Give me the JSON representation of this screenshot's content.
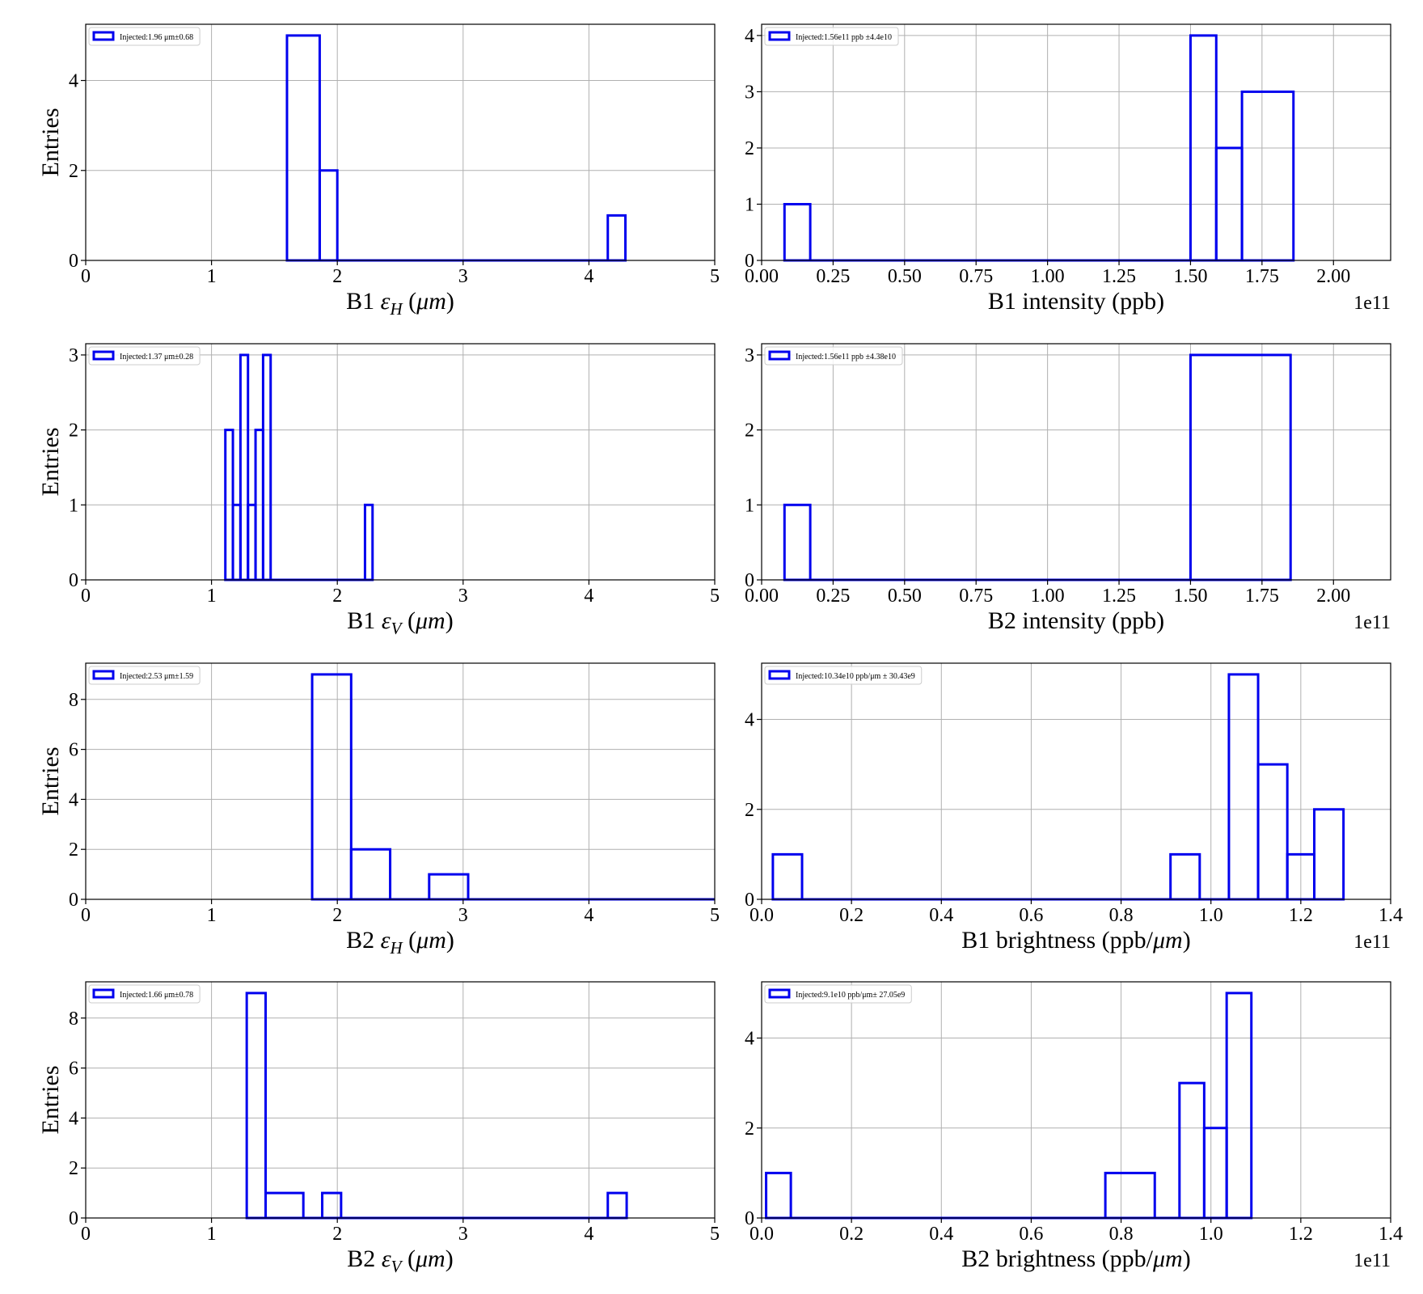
{
  "chart_data": [
    {
      "type": "histogram",
      "xlabel": "B1 εH (μm)",
      "xlabel_parts": {
        "prefix": "B1 ",
        "symbol": "ε",
        "sub": "H",
        "suffix": " (",
        "unit": "μm",
        "close": ")"
      },
      "ylabel": "Entries",
      "xlim": [
        0,
        5
      ],
      "ylim": [
        0,
        5.25
      ],
      "xticks": [
        0,
        1,
        2,
        3,
        4,
        5
      ],
      "xtick_labels": [
        "0",
        "1",
        "2",
        "3",
        "4",
        "5"
      ],
      "yticks": [
        0,
        2,
        4
      ],
      "ytick_labels": [
        "0",
        "2",
        "4"
      ],
      "offset_text": "",
      "grid": true,
      "legend": {
        "position": "upper left",
        "label": "Injected:1.96 μm±0.68"
      },
      "color": "#0000ee",
      "bins": [
        {
          "x0": 1.6,
          "x1": 1.86,
          "count": 5
        },
        {
          "x0": 1.86,
          "x1": 2.0,
          "count": 2
        },
        {
          "x0": 2.0,
          "x1": 4.15,
          "count": 0
        },
        {
          "x0": 4.15,
          "x1": 4.29,
          "count": 1
        }
      ]
    },
    {
      "type": "histogram",
      "xlabel": "B1 intensity (ppb)",
      "ylabel": "",
      "xlim": [
        0,
        2.2
      ],
      "ylim": [
        0,
        4.2
      ],
      "xticks": [
        0,
        0.25,
        0.5,
        0.75,
        1.0,
        1.25,
        1.5,
        1.75,
        2.0
      ],
      "xtick_labels": [
        "0.00",
        "0.25",
        "0.50",
        "0.75",
        "1.00",
        "1.25",
        "1.50",
        "1.75",
        "2.00"
      ],
      "yticks": [
        0,
        1,
        2,
        3,
        4
      ],
      "ytick_labels": [
        "0",
        "1",
        "2",
        "3",
        "4"
      ],
      "offset_text": "1e11",
      "grid": true,
      "legend": {
        "position": "upper left",
        "label": "Injected:1.56e11 ppb ±4.4e10"
      },
      "color": "#0000ee",
      "bins": [
        {
          "x0": 0.08,
          "x1": 0.17,
          "count": 1
        },
        {
          "x0": 0.17,
          "x1": 1.5,
          "count": 0
        },
        {
          "x0": 1.5,
          "x1": 1.59,
          "count": 4
        },
        {
          "x0": 1.59,
          "x1": 1.68,
          "count": 2
        },
        {
          "x0": 1.68,
          "x1": 1.86,
          "count": 3
        }
      ]
    },
    {
      "type": "histogram",
      "xlabel": "B1 εV (μm)",
      "xlabel_parts": {
        "prefix": "B1 ",
        "symbol": "ε",
        "sub": "V",
        "suffix": " (",
        "unit": "μm",
        "close": ")"
      },
      "ylabel": "Entries",
      "xlim": [
        0,
        5
      ],
      "ylim": [
        0,
        3.15
      ],
      "xticks": [
        0,
        1,
        2,
        3,
        4,
        5
      ],
      "xtick_labels": [
        "0",
        "1",
        "2",
        "3",
        "4",
        "5"
      ],
      "yticks": [
        0,
        1,
        2,
        3
      ],
      "ytick_labels": [
        "0",
        "1",
        "2",
        "3"
      ],
      "offset_text": "",
      "grid": true,
      "legend": {
        "position": "upper left",
        "label": "Injected:1.37 μm±0.28"
      },
      "color": "#0000ee",
      "bins": [
        {
          "x0": 1.11,
          "x1": 1.17,
          "count": 2
        },
        {
          "x0": 1.17,
          "x1": 1.23,
          "count": 1
        },
        {
          "x0": 1.23,
          "x1": 1.29,
          "count": 3
        },
        {
          "x0": 1.29,
          "x1": 1.35,
          "count": 1
        },
        {
          "x0": 1.35,
          "x1": 1.41,
          "count": 2
        },
        {
          "x0": 1.41,
          "x1": 1.47,
          "count": 3
        },
        {
          "x0": 1.47,
          "x1": 2.22,
          "count": 0
        },
        {
          "x0": 2.22,
          "x1": 2.28,
          "count": 1
        }
      ]
    },
    {
      "type": "histogram",
      "xlabel": "B2 intensity (ppb)",
      "ylabel": "",
      "xlim": [
        0,
        2.2
      ],
      "ylim": [
        0,
        3.15
      ],
      "xticks": [
        0,
        0.25,
        0.5,
        0.75,
        1.0,
        1.25,
        1.5,
        1.75,
        2.0
      ],
      "xtick_labels": [
        "0.00",
        "0.25",
        "0.50",
        "0.75",
        "1.00",
        "1.25",
        "1.50",
        "1.75",
        "2.00"
      ],
      "yticks": [
        0,
        1,
        2,
        3
      ],
      "ytick_labels": [
        "0",
        "1",
        "2",
        "3"
      ],
      "offset_text": "1e11",
      "grid": true,
      "legend": {
        "position": "upper left",
        "label": "Injected:1.56e11 ppb ±4.38e10"
      },
      "color": "#0000ee",
      "bins": [
        {
          "x0": 0.08,
          "x1": 0.17,
          "count": 1
        },
        {
          "x0": 0.17,
          "x1": 1.5,
          "count": 0
        },
        {
          "x0": 1.5,
          "x1": 1.85,
          "count": 3
        }
      ]
    },
    {
      "type": "histogram",
      "xlabel": "B2 εH (μm)",
      "xlabel_parts": {
        "prefix": "B2 ",
        "symbol": "ε",
        "sub": "H",
        "suffix": " (",
        "unit": "μm",
        "close": ")"
      },
      "ylabel": "Entries",
      "xlim": [
        0,
        5
      ],
      "ylim": [
        0,
        9.45
      ],
      "xticks": [
        0,
        1,
        2,
        3,
        4,
        5
      ],
      "xtick_labels": [
        "0",
        "1",
        "2",
        "3",
        "4",
        "5"
      ],
      "yticks": [
        0,
        2,
        4,
        6,
        8
      ],
      "ytick_labels": [
        "0",
        "2",
        "4",
        "6",
        "8"
      ],
      "offset_text": "",
      "grid": true,
      "legend": {
        "position": "upper left",
        "label": "Injected:2.53 μm±1.59"
      },
      "color": "#0000ee",
      "bins": [
        {
          "x0": 1.8,
          "x1": 2.11,
          "count": 9
        },
        {
          "x0": 2.11,
          "x1": 2.42,
          "count": 2
        },
        {
          "x0": 2.42,
          "x1": 2.73,
          "count": 0
        },
        {
          "x0": 2.73,
          "x1": 3.04,
          "count": 1
        },
        {
          "x0": 3.04,
          "x1": 5.0,
          "count": 0
        }
      ]
    },
    {
      "type": "histogram",
      "xlabel": "B1 brightness (ppb/μm)",
      "xlabel_parts": {
        "prefix": "B1 brightness (ppb/",
        "unit": "μm",
        "close": ")"
      },
      "ylabel": "",
      "xlim": [
        0,
        1.4
      ],
      "ylim": [
        0,
        5.25
      ],
      "xticks": [
        0,
        0.2,
        0.4,
        0.6,
        0.8,
        1.0,
        1.2,
        1.4
      ],
      "xtick_labels": [
        "0.0",
        "0.2",
        "0.4",
        "0.6",
        "0.8",
        "1.0",
        "1.2",
        "1.4"
      ],
      "yticks": [
        0,
        2,
        4
      ],
      "ytick_labels": [
        "0",
        "2",
        "4"
      ],
      "offset_text": "1e11",
      "grid": true,
      "legend": {
        "position": "upper left",
        "label": "Injected:10.34e10 ppb/μm ± 30.43e9"
      },
      "color": "#0000ee",
      "bins": [
        {
          "x0": 0.025,
          "x1": 0.09,
          "count": 1
        },
        {
          "x0": 0.09,
          "x1": 0.91,
          "count": 0
        },
        {
          "x0": 0.91,
          "x1": 0.975,
          "count": 1
        },
        {
          "x0": 0.975,
          "x1": 1.04,
          "count": 0
        },
        {
          "x0": 1.04,
          "x1": 1.105,
          "count": 5
        },
        {
          "x0": 1.105,
          "x1": 1.17,
          "count": 3
        },
        {
          "x0": 1.17,
          "x1": 1.23,
          "count": 1
        },
        {
          "x0": 1.23,
          "x1": 1.295,
          "count": 2
        }
      ]
    },
    {
      "type": "histogram",
      "xlabel": "B2 εV (μm)",
      "xlabel_parts": {
        "prefix": "B2 ",
        "symbol": "ε",
        "sub": "V",
        "suffix": " (",
        "unit": "μm",
        "close": ")"
      },
      "ylabel": "Entries",
      "xlim": [
        0,
        5
      ],
      "ylim": [
        0,
        9.45
      ],
      "xticks": [
        0,
        1,
        2,
        3,
        4,
        5
      ],
      "xtick_labels": [
        "0",
        "1",
        "2",
        "3",
        "4",
        "5"
      ],
      "yticks": [
        0,
        2,
        4,
        6,
        8
      ],
      "ytick_labels": [
        "0",
        "2",
        "4",
        "6",
        "8"
      ],
      "offset_text": "",
      "grid": true,
      "legend": {
        "position": "upper left",
        "label": "Injected:1.66 μm±0.78"
      },
      "color": "#0000ee",
      "bins": [
        {
          "x0": 1.28,
          "x1": 1.43,
          "count": 9
        },
        {
          "x0": 1.43,
          "x1": 1.73,
          "count": 1
        },
        {
          "x0": 1.73,
          "x1": 1.88,
          "count": 0
        },
        {
          "x0": 1.88,
          "x1": 2.03,
          "count": 1
        },
        {
          "x0": 2.03,
          "x1": 4.15,
          "count": 0
        },
        {
          "x0": 4.15,
          "x1": 4.3,
          "count": 1
        }
      ]
    },
    {
      "type": "histogram",
      "xlabel": "B2 brightness (ppb/μm)",
      "xlabel_parts": {
        "prefix": "B2 brightness (ppb/",
        "unit": "μm",
        "close": ")"
      },
      "ylabel": "",
      "xlim": [
        0,
        1.4
      ],
      "ylim": [
        0,
        5.25
      ],
      "xticks": [
        0,
        0.2,
        0.4,
        0.6,
        0.8,
        1.0,
        1.2,
        1.4
      ],
      "xtick_labels": [
        "0.0",
        "0.2",
        "0.4",
        "0.6",
        "0.8",
        "1.0",
        "1.2",
        "1.4"
      ],
      "yticks": [
        0,
        2,
        4
      ],
      "ytick_labels": [
        "0",
        "2",
        "4"
      ],
      "offset_text": "1e11",
      "grid": true,
      "legend": {
        "position": "upper left",
        "label": "Injected:9.1e10 ppb/μm± 27.05e9"
      },
      "color": "#0000ee",
      "bins": [
        {
          "x0": 0.01,
          "x1": 0.065,
          "count": 1
        },
        {
          "x0": 0.065,
          "x1": 0.765,
          "count": 0
        },
        {
          "x0": 0.765,
          "x1": 0.875,
          "count": 1
        },
        {
          "x0": 0.875,
          "x1": 0.93,
          "count": 0
        },
        {
          "x0": 0.93,
          "x1": 0.985,
          "count": 3
        },
        {
          "x0": 0.985,
          "x1": 1.035,
          "count": 2
        },
        {
          "x0": 1.035,
          "x1": 1.09,
          "count": 5
        }
      ]
    }
  ]
}
